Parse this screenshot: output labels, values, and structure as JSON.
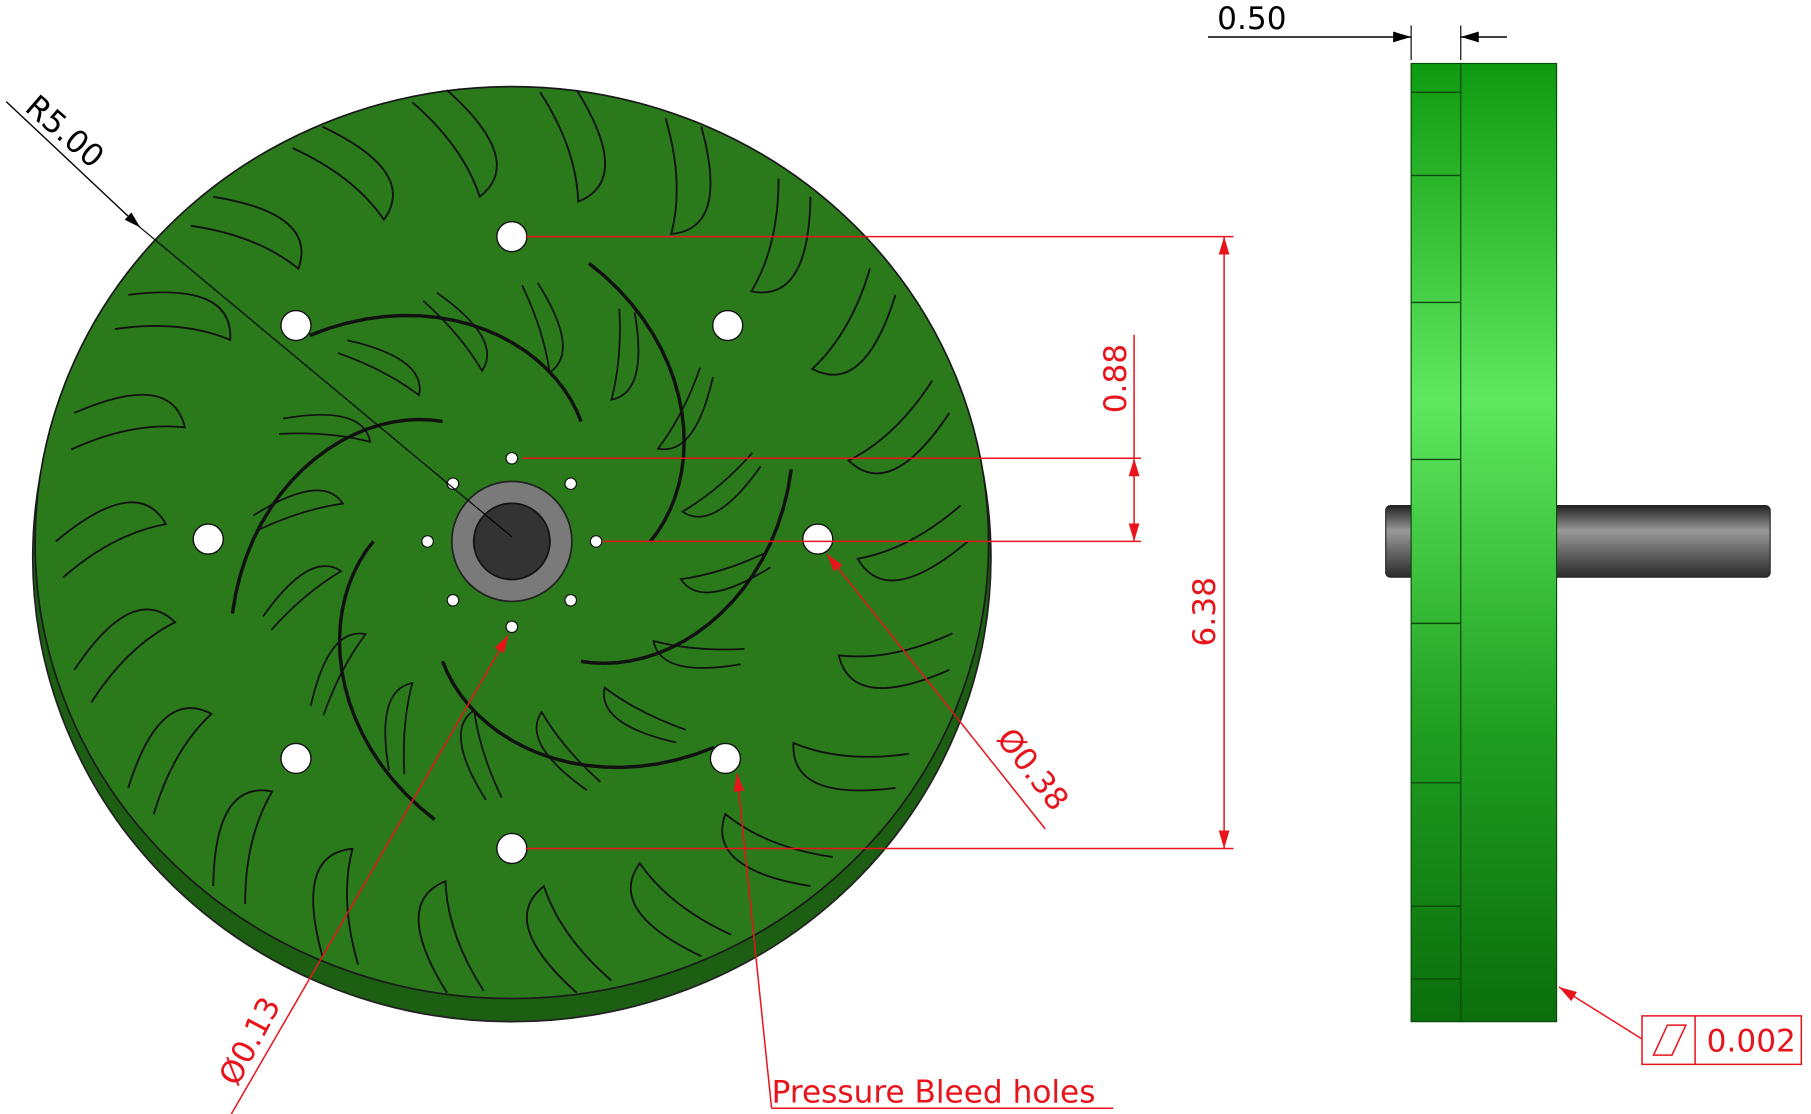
{
  "dimensions": {
    "radius": "R5.00",
    "thickness": "0.50",
    "small_hole_offset": "0.88",
    "bolt_circle": "6.38",
    "bolt_hole_diameter": "Ø0.38",
    "bleed_hole_diameter": "Ø0.13",
    "flatness": "0.002"
  },
  "notes": {
    "bleed_holes": "Pressure Bleed holes"
  }
}
